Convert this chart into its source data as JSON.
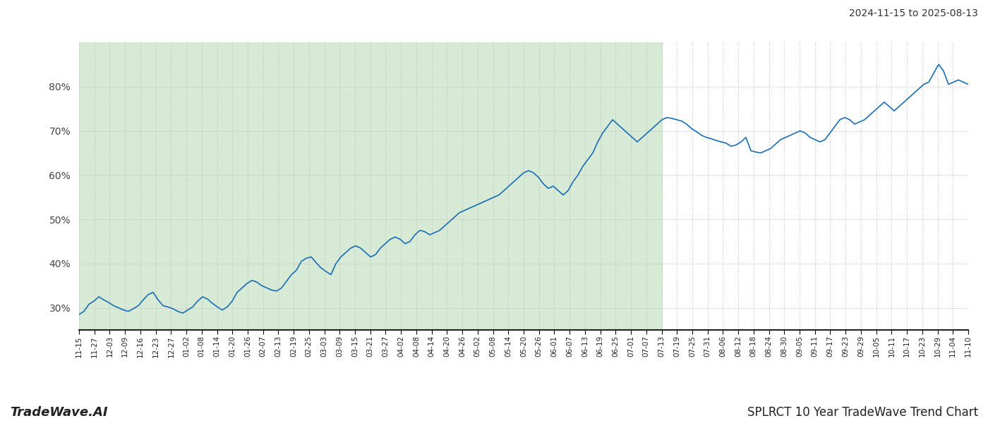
{
  "title_top_right": "2024-11-15 to 2025-08-13",
  "title_bottom_left": "TradeWave.AI",
  "title_bottom_right": "SPLRCT 10 Year TradeWave Trend Chart",
  "background_color": "#ffffff",
  "shaded_region_color": "#d6ead6",
  "line_color": "#1a6db5",
  "line_width": 1.2,
  "ylim": [
    25,
    90
  ],
  "yticks": [
    30,
    40,
    50,
    60,
    70,
    80
  ],
  "grid_color": "#bbbbbb",
  "shaded_label_start": "11-15",
  "shaded_label_end": "07-13",
  "x_labels": [
    "11-15",
    "11-27",
    "12-03",
    "12-09",
    "12-16",
    "12-23",
    "12-27",
    "01-02",
    "01-08",
    "01-14",
    "01-20",
    "01-26",
    "02-07",
    "02-13",
    "02-19",
    "02-25",
    "03-03",
    "03-09",
    "03-15",
    "03-21",
    "03-27",
    "04-02",
    "04-08",
    "04-14",
    "04-20",
    "04-26",
    "05-02",
    "05-08",
    "05-14",
    "05-20",
    "05-26",
    "06-01",
    "06-07",
    "06-13",
    "06-19",
    "06-25",
    "07-01",
    "07-07",
    "07-13",
    "07-19",
    "07-25",
    "07-31",
    "08-06",
    "08-12",
    "08-18",
    "08-24",
    "08-30",
    "09-05",
    "09-11",
    "09-17",
    "09-23",
    "09-29",
    "10-05",
    "10-11",
    "10-17",
    "10-23",
    "10-29",
    "11-04",
    "11-10"
  ],
  "values": [
    28.5,
    29.2,
    30.8,
    31.5,
    32.5,
    31.8,
    31.2,
    30.5,
    30.0,
    29.5,
    29.2,
    29.8,
    30.5,
    31.8,
    33.0,
    33.5,
    31.8,
    30.5,
    30.2,
    29.8,
    29.2,
    28.8,
    29.5,
    30.2,
    31.5,
    32.5,
    32.0,
    31.0,
    30.2,
    29.5,
    30.2,
    31.5,
    33.5,
    34.5,
    35.5,
    36.2,
    35.8,
    35.0,
    34.5,
    34.0,
    33.8,
    34.5,
    36.0,
    37.5,
    38.5,
    40.5,
    41.2,
    41.5,
    40.2,
    39.0,
    38.2,
    37.5,
    40.0,
    41.5,
    42.5,
    43.5,
    44.0,
    43.5,
    42.5,
    41.5,
    42.0,
    43.5,
    44.5,
    45.5,
    46.0,
    45.5,
    44.5,
    45.0,
    46.5,
    47.5,
    47.2,
    46.5,
    47.0,
    47.5,
    48.5,
    49.5,
    50.5,
    51.5,
    52.0,
    52.5,
    53.0,
    53.5,
    54.0,
    54.5,
    55.0,
    55.5,
    56.5,
    57.5,
    58.5,
    59.5,
    60.5,
    61.0,
    60.5,
    59.5,
    58.0,
    57.0,
    57.5,
    56.5,
    55.5,
    56.5,
    58.5,
    60.0,
    62.0,
    63.5,
    65.0,
    67.5,
    69.5,
    71.0,
    72.5,
    71.5,
    70.5,
    69.5,
    68.5,
    67.5,
    68.5,
    69.5,
    70.5,
    71.5,
    72.5,
    73.0,
    72.8,
    72.5,
    72.2,
    71.5,
    70.5,
    69.8,
    69.0,
    68.5,
    68.2,
    67.8,
    67.5,
    67.2,
    66.5,
    66.8,
    67.5,
    68.5,
    65.5,
    65.2,
    65.0,
    65.5,
    66.0,
    67.0,
    68.0,
    68.5,
    69.0,
    69.5,
    70.0,
    69.5,
    68.5,
    68.0,
    67.5,
    68.0,
    69.5,
    71.0,
    72.5,
    73.0,
    72.5,
    71.5,
    72.0,
    72.5,
    73.5,
    74.5,
    75.5,
    76.5,
    75.5,
    74.5,
    75.5,
    76.5,
    77.5,
    78.5,
    79.5,
    80.5,
    81.0,
    83.0,
    85.0,
    83.5,
    80.5,
    81.0,
    81.5,
    81.0,
    80.5
  ]
}
